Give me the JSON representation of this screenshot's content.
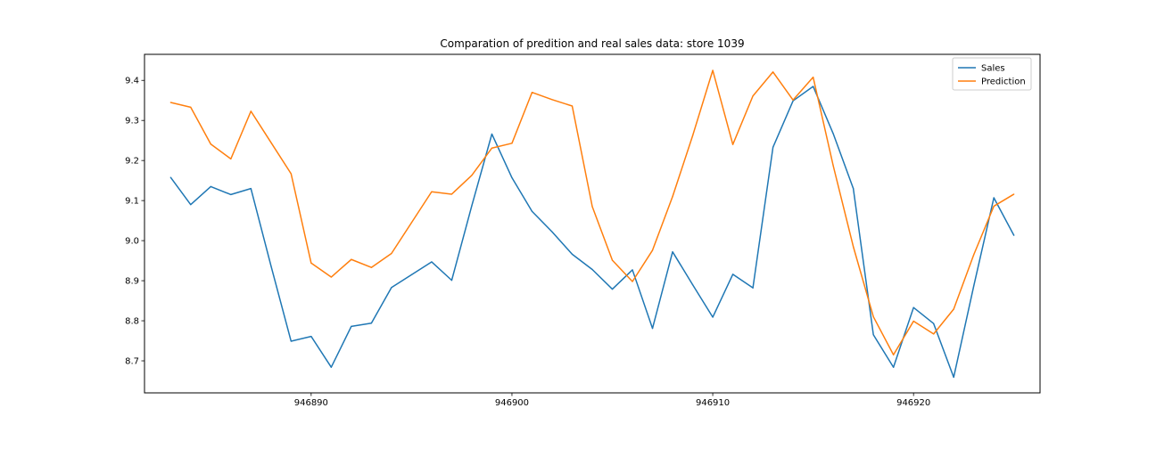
{
  "chart_data": {
    "type": "line",
    "title": "Comparation of predition and real sales data: store 1039",
    "xlabel": "",
    "ylabel": "",
    "xlim": [
      946881.7,
      946926.3
    ],
    "ylim": [
      8.62,
      9.465
    ],
    "x_ticks": [
      946890,
      946900,
      946910,
      946920
    ],
    "x_tick_labels": [
      "946890",
      "946900",
      "946910",
      "946920"
    ],
    "y_ticks": [
      8.7,
      8.8,
      8.9,
      9.0,
      9.1,
      9.2,
      9.3,
      9.4
    ],
    "y_tick_labels": [
      "8.7",
      "8.8",
      "8.9",
      "9.0",
      "9.1",
      "9.2",
      "9.3",
      "9.4"
    ],
    "grid": false,
    "legend_position": "top-right",
    "x": [
      946883,
      946884,
      946885,
      946886,
      946887,
      946888,
      946889,
      946890,
      946891,
      946892,
      946893,
      946894,
      946895,
      946896,
      946897,
      946898,
      946899,
      946900,
      946901,
      946902,
      946903,
      946904,
      946905,
      946906,
      946907,
      946908,
      946909,
      946910,
      946911,
      946912,
      946913,
      946914,
      946915,
      946916,
      946917,
      946918,
      946919,
      946920,
      946921,
      946922,
      946923,
      946924,
      946925
    ],
    "series": [
      {
        "name": "Sales",
        "color": "#1f77b4",
        "values": [
          9.158,
          9.09,
          9.135,
          9.115,
          9.13,
          8.937,
          8.749,
          8.761,
          8.684,
          8.786,
          8.794,
          8.883,
          8.915,
          8.947,
          8.901,
          9.087,
          9.266,
          9.157,
          9.073,
          9.022,
          8.966,
          8.928,
          8.879,
          8.927,
          8.781,
          8.972,
          8.89,
          8.809,
          8.916,
          8.882,
          9.233,
          9.349,
          9.385,
          9.267,
          9.13,
          8.765,
          8.684,
          8.833,
          8.793,
          8.659,
          8.887,
          9.107,
          9.013
        ]
      },
      {
        "name": "Prediction",
        "color": "#ff7f0e",
        "values": [
          9.345,
          9.333,
          9.241,
          9.204,
          9.323,
          9.245,
          9.167,
          8.944,
          8.909,
          8.953,
          8.933,
          8.968,
          9.045,
          9.122,
          9.116,
          9.163,
          9.231,
          9.243,
          9.37,
          9.352,
          9.336,
          9.085,
          8.951,
          8.898,
          8.976,
          9.11,
          9.262,
          9.425,
          9.24,
          9.361,
          9.421,
          9.351,
          9.408,
          9.187,
          8.985,
          8.81,
          8.715,
          8.799,
          8.767,
          8.829,
          8.965,
          9.086,
          9.116
        ]
      }
    ]
  }
}
